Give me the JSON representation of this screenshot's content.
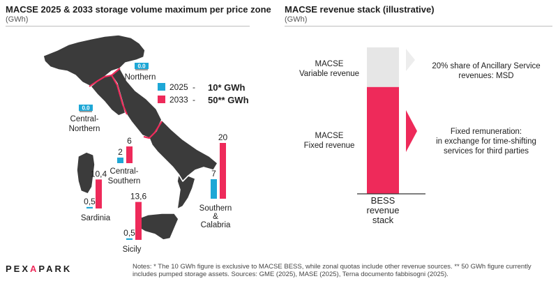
{
  "left_panel": {
    "title": "MACSE 2025 & 2033 storage volume maximum per price zone",
    "unit": "(GWh)"
  },
  "right_panel": {
    "title": "MACSE revenue stack (illustrative)",
    "unit": "(GWh)"
  },
  "colors": {
    "series_2025": "#1ea7d6",
    "series_2033": "#ee2a5a",
    "map_fill": "#3b3b3b",
    "variable_bar": "#e6e6e6",
    "arrow_light": "#ededed"
  },
  "chart_data": [
    {
      "type": "bar",
      "title": "MACSE 2025 & 2033 storage volume maximum per price zone",
      "unit": "(GWh)",
      "categories": [
        "Northern",
        "Central-Northern",
        "Central-Southern",
        "Sardinia",
        "Sicily",
        "Southern & Calabria"
      ],
      "series": [
        {
          "name": "2025",
          "values": [
            0.0,
            0.0,
            2,
            0.5,
            0.5,
            7
          ],
          "labels": [
            "0.0",
            "0.0",
            "2",
            "0,5",
            "0,5",
            "7"
          ]
        },
        {
          "name": "2033",
          "values": [
            0.0,
            0.0,
            6,
            10.4,
            13.6,
            20
          ],
          "labels": [
            "",
            "",
            "6",
            "10,4",
            "13,6",
            "20"
          ]
        }
      ],
      "legend": [
        {
          "year": "2025",
          "separator": "-",
          "total": "10* GWh"
        },
        {
          "year": "2033",
          "separator": "-",
          "total": "50** GWh"
        }
      ],
      "zone_labels": {
        "northern": "Northern",
        "central_northern": [
          "Central-",
          "Northern"
        ],
        "central_southern": [
          "Central-",
          "Southern"
        ],
        "sardinia": "Sardinia",
        "sicily": "Sicily",
        "southern": [
          "Southern",
          "&",
          "Calabria"
        ]
      },
      "legend_position": "top-right"
    },
    {
      "type": "bar",
      "title": "MACSE revenue stack (illustrative)",
      "unit": "(GWh)",
      "categories": [
        "BESS revenue stack"
      ],
      "stack": [
        {
          "name": "MACSE Fixed revenue",
          "share": 0.73
        },
        {
          "name": "MACSE Variable revenue",
          "share": 0.27
        }
      ],
      "segment_labels": {
        "variable": [
          "MACSE",
          "Variable revenue"
        ],
        "fixed": [
          "MACSE",
          "Fixed revenue"
        ]
      },
      "annotations": {
        "variable": [
          "20% share of Ancillary Service",
          "revenues: MSD"
        ],
        "fixed": [
          "Fixed remuneration:",
          "in exchange for time-shifting",
          "services for third parties"
        ]
      },
      "x_label": [
        "BESS",
        "revenue",
        "stack"
      ]
    }
  ],
  "footer": {
    "logo_pre": "PE",
    "logo_x": "X",
    "logo_a": "A",
    "logo_post": "PARK",
    "notes": "Notes: *  The 10 GWh figure is exclusive to MACSE BESS, while zonal quotas include other revenue sources. ** 50 GWh figure currently includes pumped storage assets. Sources: GME (2025), MASE (2025), Terna documento fabbisogni (2025)."
  }
}
